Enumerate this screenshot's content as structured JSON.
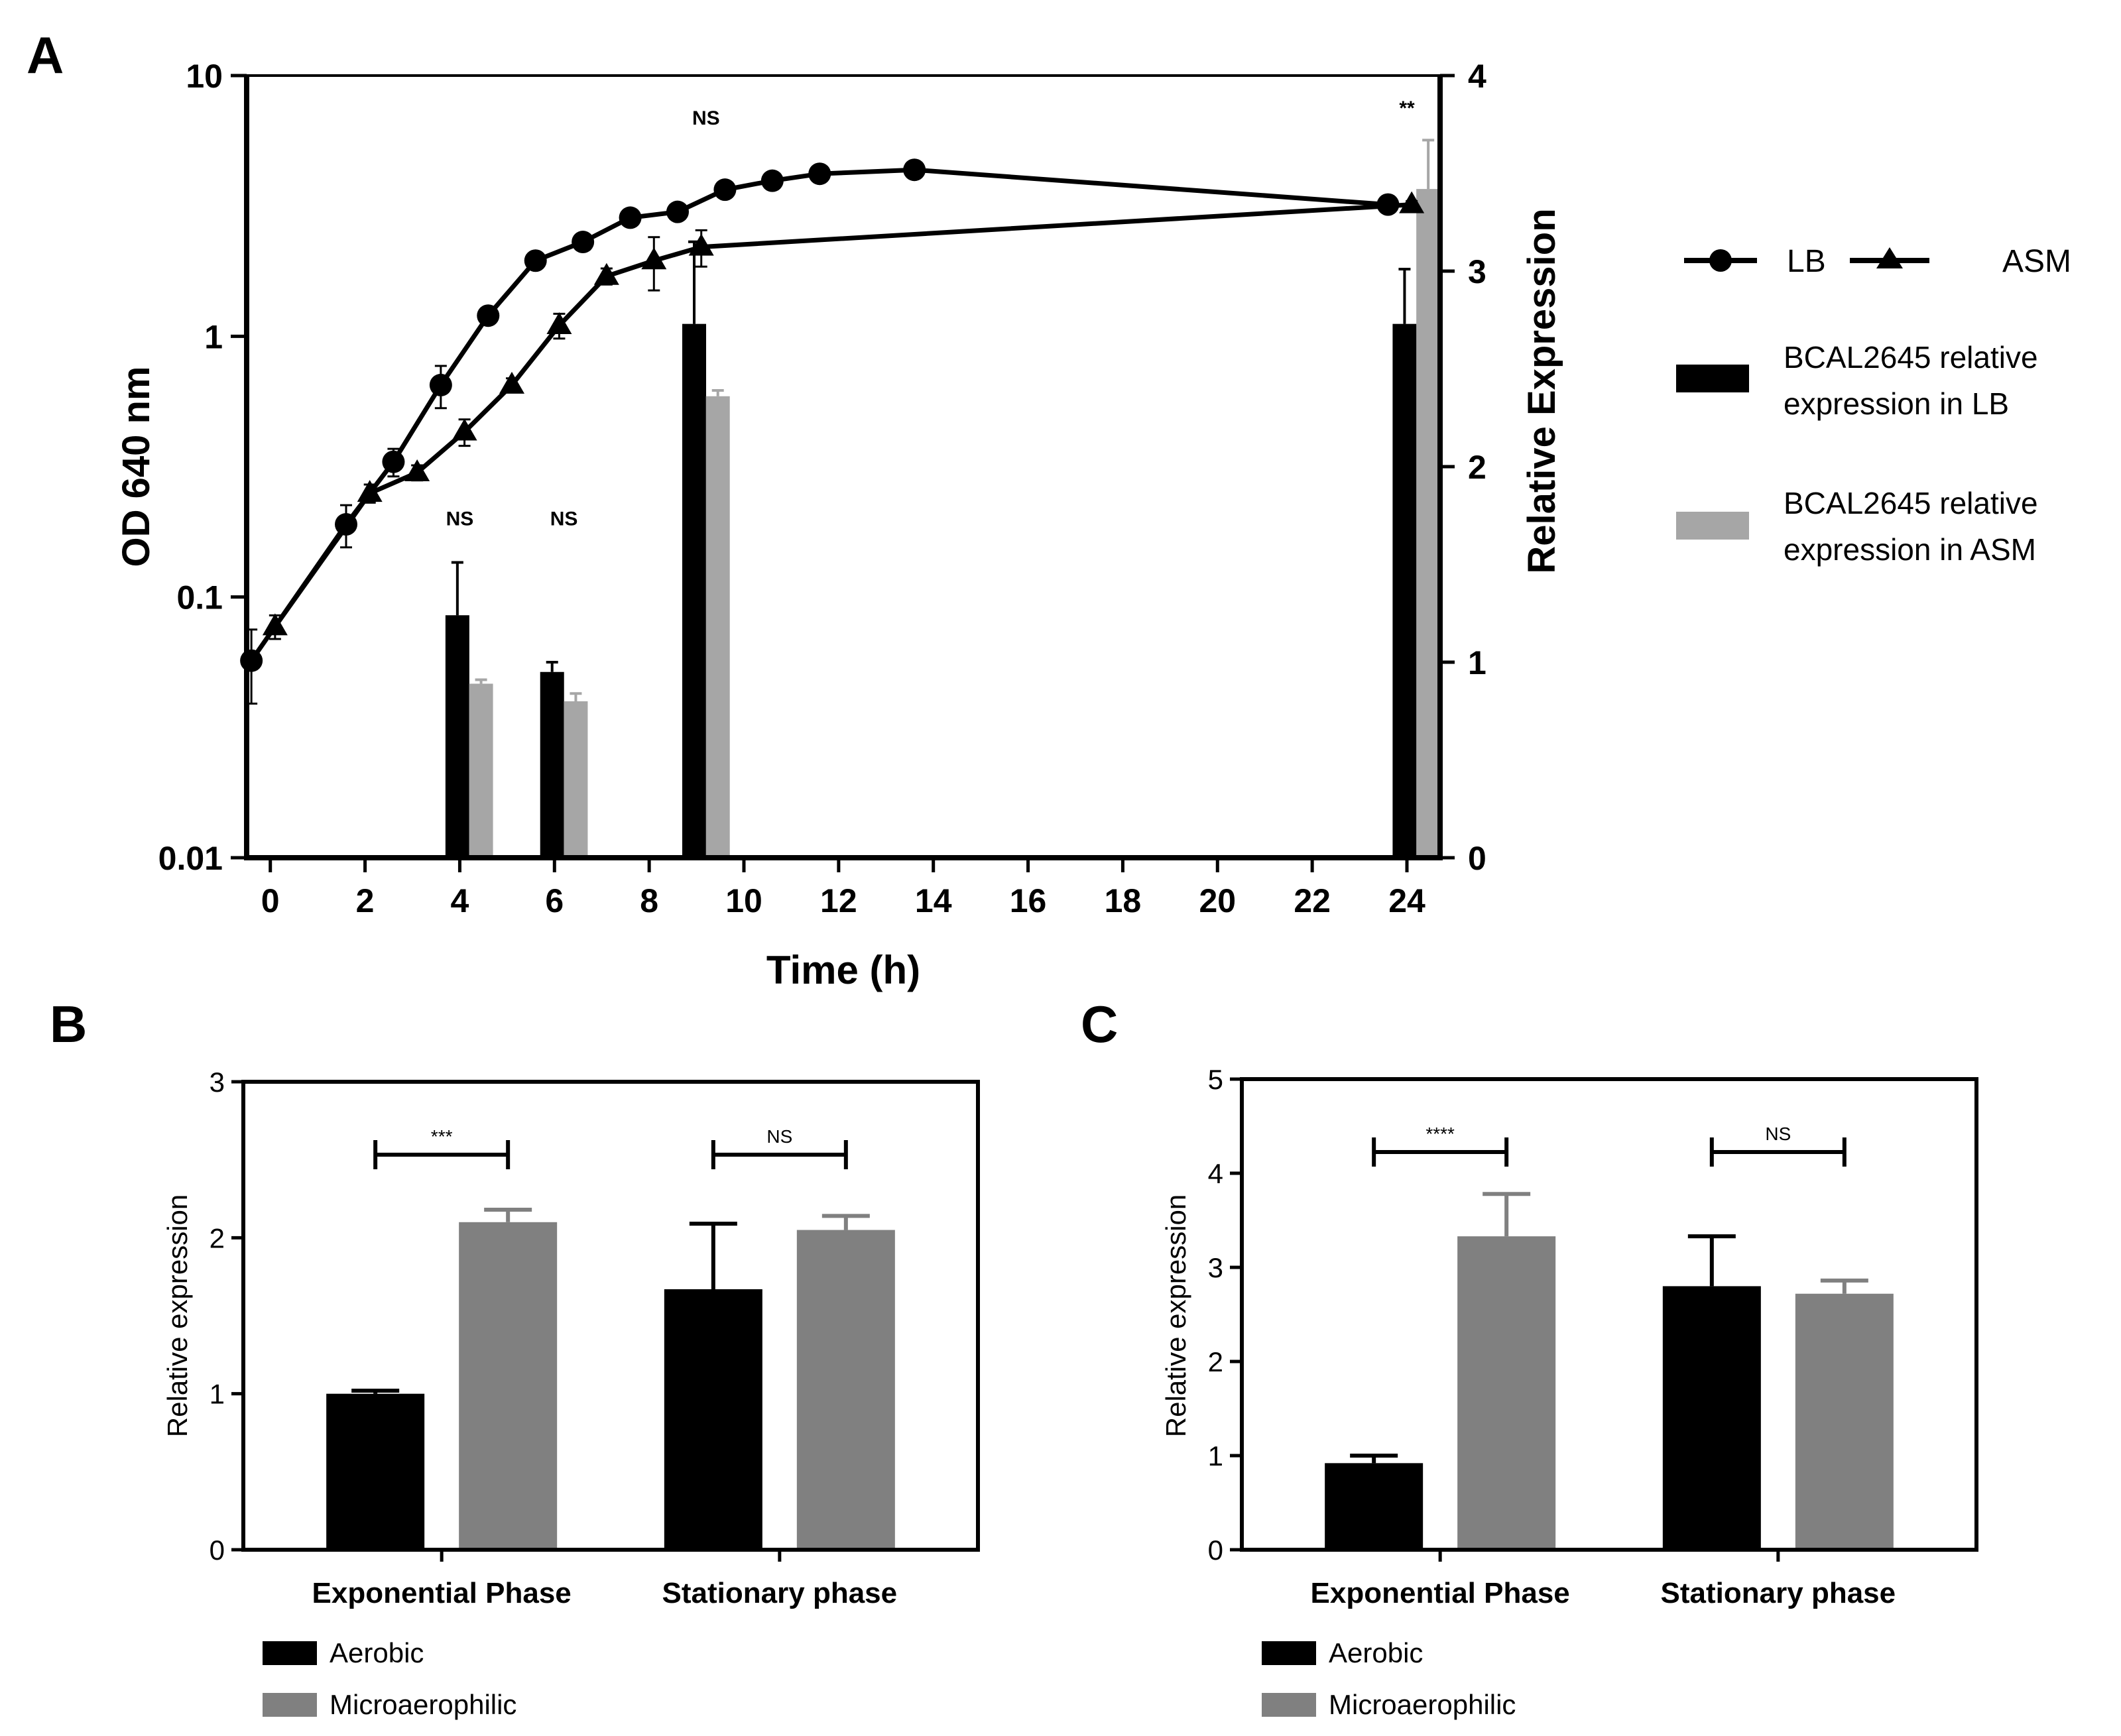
{
  "colors": {
    "black": "#000000",
    "light_grey": "#a6a6a6",
    "mid_grey": "#808080"
  },
  "panel_a": {
    "label": "A",
    "xlabel": "Time (h)",
    "ylabel": "OD 640 nm",
    "y2label": "Relative Expression",
    "x_ticks": [
      "0",
      "2",
      "4",
      "6",
      "8",
      "10",
      "12",
      "14",
      "16",
      "18",
      "20",
      "22",
      "24"
    ],
    "y_ticks": [
      "0.01",
      "0.1",
      "1",
      "10"
    ],
    "y2_ticks": [
      "0",
      "1",
      "2",
      "3",
      "4"
    ],
    "legend": {
      "lb": "LB",
      "asm": "ASM",
      "bar_lb_line1": "BCAL2645 relative",
      "bar_lb_line2": "expression in LB",
      "bar_asm_line1": "BCAL2645 relative",
      "bar_asm_line2": "expression in ASM"
    },
    "annotations": [
      "NS",
      "NS",
      "NS",
      "**"
    ]
  },
  "panel_b": {
    "label": "B",
    "ylabel": "Relative expression",
    "y_ticks": [
      "0",
      "1",
      "2",
      "3"
    ],
    "categories": [
      "Exponential Phase",
      "Stationary phase"
    ],
    "legend": [
      "Aerobic",
      "Microaerophilic"
    ],
    "annotations": [
      "***",
      "NS"
    ]
  },
  "panel_c": {
    "label": "C",
    "ylabel": "Relative expression",
    "y_ticks": [
      "0",
      "1",
      "2",
      "3",
      "4",
      "5"
    ],
    "categories": [
      "Exponential Phase",
      "Stationary phase"
    ],
    "legend": [
      "Aerobic",
      "Microaerophilic"
    ],
    "annotations": [
      "****",
      "NS"
    ]
  },
  "chart_data": [
    {
      "type": "line",
      "title": "A",
      "xlabel": "Time (h)",
      "ylabel": "OD 640 nm",
      "y2label": "Relative Expression",
      "yscale": "log",
      "ylim": [
        0.01,
        10
      ],
      "y2lim": [
        0,
        4
      ],
      "xlim": [
        -0.5,
        24.7
      ],
      "series": [
        {
          "name": "LB",
          "marker": "circle",
          "x": [
            -0.4,
            1.6,
            2.6,
            3.6,
            4.6,
            5.6,
            6.6,
            7.6,
            8.6,
            9.6,
            10.6,
            11.6,
            13.6,
            23.6
          ],
          "y": [
            0.057,
            0.19,
            0.33,
            0.65,
            1.2,
            1.95,
            2.3,
            2.85,
            3.0,
            3.65,
            3.95,
            4.2,
            4.35,
            3.2
          ],
          "err": [
            0.018,
            0.035,
            0.04,
            0.12,
            0.06,
            0.1,
            0.12,
            0.1,
            0.1,
            0.15,
            0.15,
            0.15,
            0.15,
            0.1
          ]
        },
        {
          "name": "ASM",
          "marker": "triangle",
          "x": [
            0.1,
            2.1,
            3.1,
            4.1,
            5.1,
            6.1,
            7.1,
            8.1,
            9.1,
            24.1
          ],
          "y": [
            0.077,
            0.25,
            0.3,
            0.43,
            0.65,
            1.1,
            1.7,
            1.95,
            2.2,
            3.2
          ],
          "err": [
            0.008,
            0.02,
            0.02,
            0.05,
            0.04,
            0.12,
            0.12,
            0.45,
            0.35,
            0.1
          ]
        }
      ],
      "bars": [
        {
          "name": "BCAL2645 relative expression in LB",
          "x": [
            3.95,
            5.95,
            8.95,
            23.95
          ],
          "values": [
            1.24,
            0.95,
            2.73,
            2.73
          ],
          "err": [
            0.27,
            0.05,
            0.42,
            0.28
          ]
        },
        {
          "name": "BCAL2645 relative expression in ASM",
          "x": [
            4.45,
            6.45,
            9.45,
            24.45
          ],
          "values": [
            0.89,
            0.8,
            2.36,
            3.42
          ],
          "err": [
            0.02,
            0.04,
            0.03,
            0.25
          ]
        }
      ],
      "annotations": [
        {
          "x": 4.0,
          "y2": 1.7,
          "text": "NS"
        },
        {
          "x": 6.2,
          "y2": 1.7,
          "text": "NS"
        },
        {
          "x": 9.2,
          "y2": 3.75,
          "text": "NS"
        },
        {
          "x": 24.0,
          "y2": 3.8,
          "text": "**"
        }
      ]
    },
    {
      "type": "bar",
      "title": "B",
      "ylabel": "Relative expression",
      "ylim": [
        0,
        3
      ],
      "categories": [
        "Exponential Phase",
        "Stationary phase"
      ],
      "series": [
        {
          "name": "Aerobic",
          "values": [
            1.0,
            1.67
          ],
          "err": [
            0.02,
            0.42
          ]
        },
        {
          "name": "Microaerophilic",
          "values": [
            2.1,
            2.05
          ],
          "err": [
            0.08,
            0.09
          ]
        }
      ],
      "significance": [
        "***",
        "NS"
      ]
    },
    {
      "type": "bar",
      "title": "C",
      "ylabel": "Relative expression",
      "ylim": [
        0,
        5
      ],
      "categories": [
        "Exponential Phase",
        "Stationary phase"
      ],
      "series": [
        {
          "name": "Aerobic",
          "values": [
            0.92,
            2.8
          ],
          "err": [
            0.08,
            0.53
          ]
        },
        {
          "name": "Microaerophilic",
          "values": [
            3.33,
            2.72
          ],
          "err": [
            0.45,
            0.14
          ]
        }
      ],
      "significance": [
        "****",
        "NS"
      ]
    }
  ]
}
